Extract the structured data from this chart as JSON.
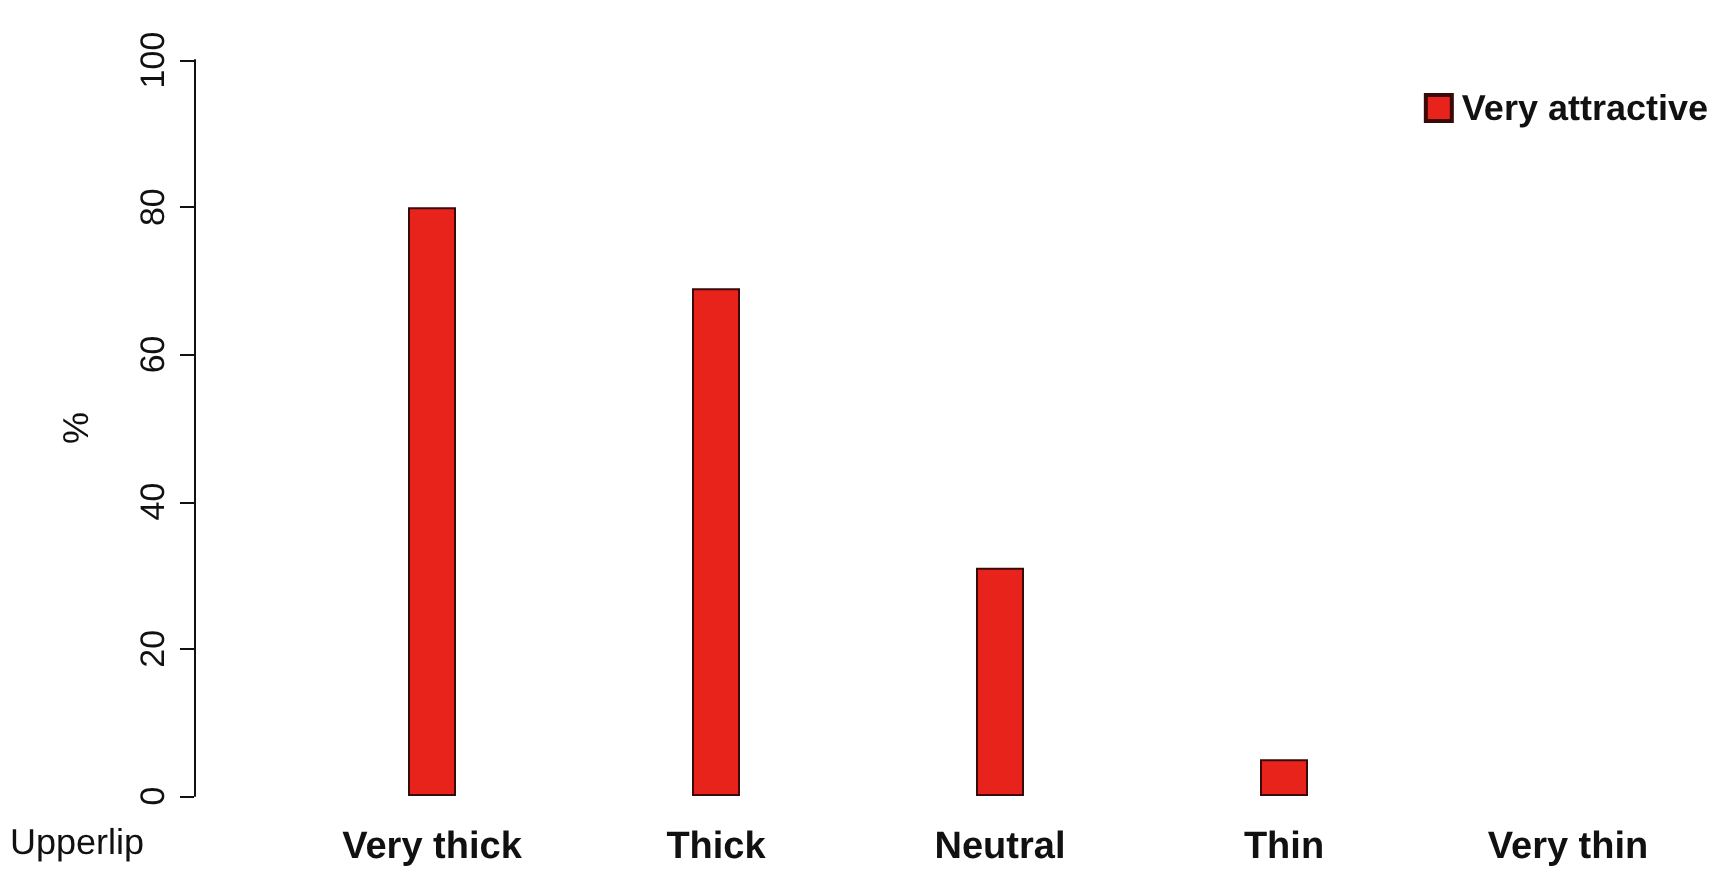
{
  "chart_data": {
    "type": "bar",
    "xlabel": "Upperlip",
    "ylabel": "%",
    "categories": [
      "Very thick",
      "Thick",
      "Neutral",
      "Thin",
      "Very thin"
    ],
    "series": [
      {
        "name": "Very attractive",
        "color": "#e8231c",
        "values": [
          80,
          69,
          31,
          5,
          null
        ]
      }
    ],
    "ylim": [
      0,
      100
    ],
    "yticks": [
      0,
      20,
      40,
      60,
      80,
      100
    ],
    "grid": false,
    "legend": "top right"
  }
}
